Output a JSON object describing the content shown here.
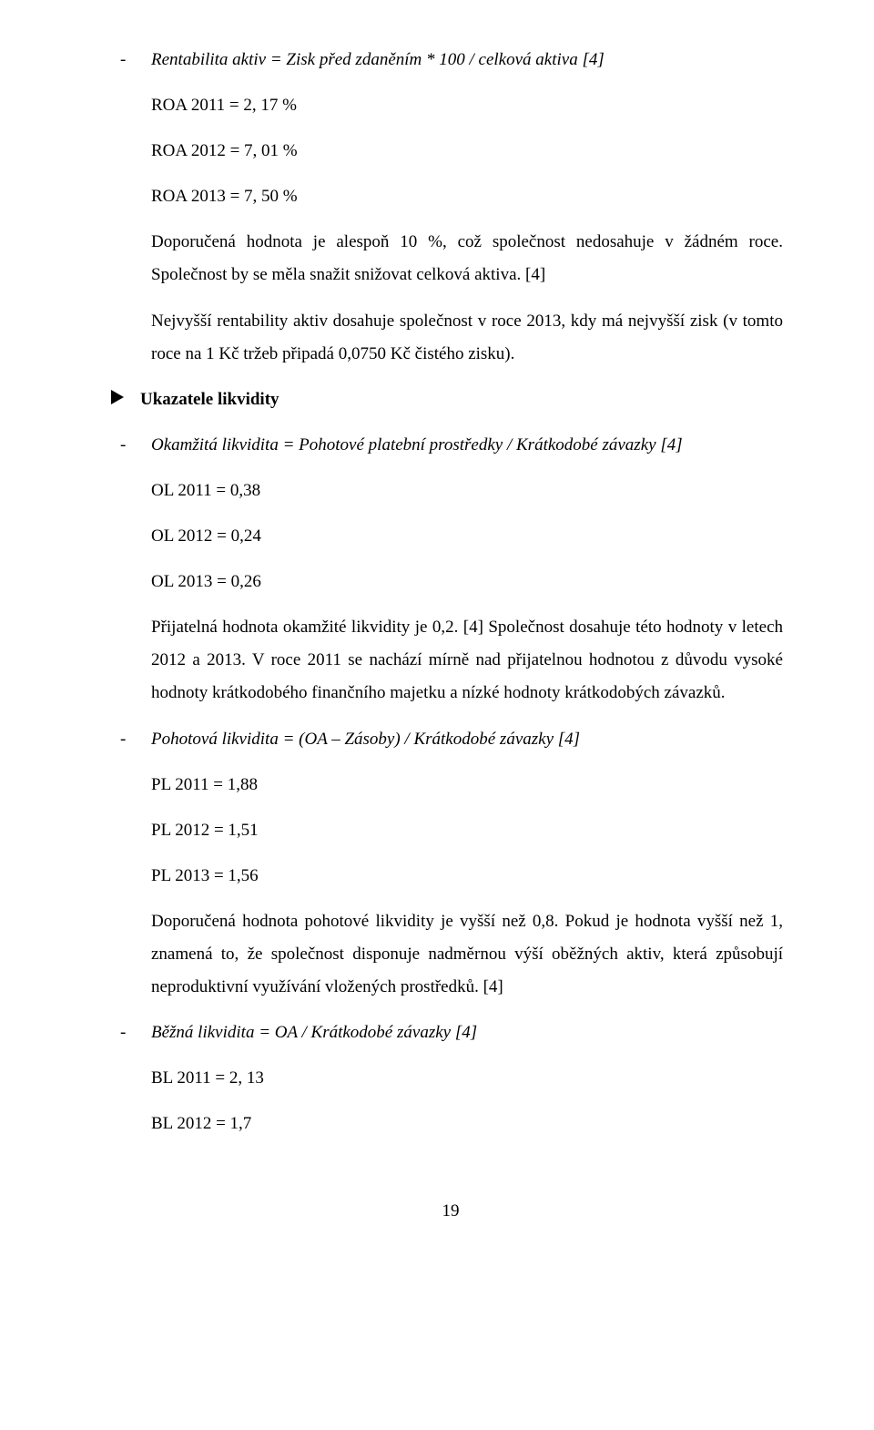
{
  "sec_roa": {
    "formula": "Rentabilita aktiv = Zisk před zdaněním * 100 / celková aktiva [4]",
    "r2011": "ROA 2011 = 2, 17 %",
    "r2012": "ROA 2012 = 7, 01 %",
    "r2013": "ROA 2013 = 7, 50 %",
    "p1": "Doporučená hodnota je alespoň 10 %, což společnost nedosahuje v žádném roce. Společnost by se měla snažit snižovat celková aktiva. [4]",
    "p2": "Nejvyšší rentability aktiv dosahuje společnost v roce 2013, kdy má nejvyšší zisk (v tomto roce na 1 Kč tržeb připadá 0,0750 Kč čistého zisku)."
  },
  "heading_likvidita": "Ukazatele likvidity",
  "sec_ol": {
    "formula": "Okamžitá likvidita = Pohotové platební prostředky / Krátkodobé závazky [4]",
    "r2011": "OL 2011 = 0,38",
    "r2012": "OL 2012 = 0,24",
    "r2013": "OL 2013 = 0,26",
    "p1": "Přijatelná hodnota okamžité likvidity je 0,2. [4] Společnost dosahuje této hodnoty v letech 2012 a 2013. V roce 2011 se nachází mírně nad přijatelnou hodnotou z důvodu vysoké hodnoty krátkodobého finančního majetku a nízké hodnoty krátkodobých závazků."
  },
  "sec_pl": {
    "formula": "Pohotová likvidita = (OA – Zásoby) / Krátkodobé závazky [4]",
    "r2011": "PL 2011 = 1,88",
    "r2012": "PL 2012 = 1,51",
    "r2013": "PL 2013 = 1,56",
    "p1": "Doporučená hodnota pohotové likvidity je vyšší než 0,8. Pokud je hodnota vyšší než 1, znamená to, že společnost disponuje nadměrnou výší oběžných aktiv, která způsobují neproduktivní využívání vložených prostředků. [4]"
  },
  "sec_bl": {
    "formula": "Běžná likvidita = OA / Krátkodobé závazky [4]",
    "r2011": "BL 2011 = 2, 13",
    "r2012": "BL 2012 = 1,7"
  },
  "pagenum": "19"
}
